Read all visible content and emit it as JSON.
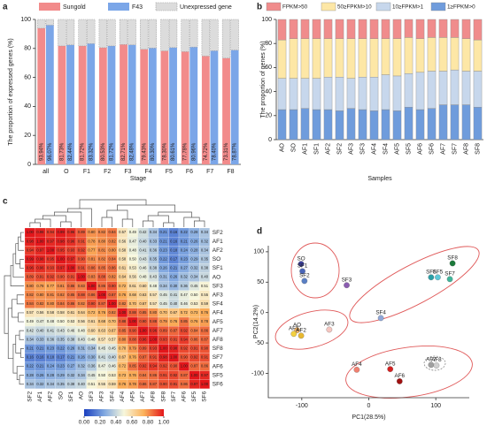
{
  "chart_data": [
    {
      "type": "bar",
      "panel": "a",
      "ylabel": "The proportion of expressed genes (%)",
      "xlabel": "Stage",
      "categories": [
        "all",
        "O",
        "F1",
        "F2",
        "F3",
        "F4",
        "F5",
        "F6",
        "F7",
        "F8"
      ],
      "series": [
        {
          "name": "Sungold",
          "color": "#f28b8b",
          "values": [
            93.94,
            81.73,
            81.72,
            80.53,
            82.71,
            79.43,
            78.3,
            77.78,
            74.72,
            73.31
          ],
          "value_labels": [
            "93.94%",
            "81.73%",
            "81.72%",
            "80.53%",
            "82.71%",
            "79.43%",
            "78.30%",
            "77.78%",
            "74.72%",
            "73.31%"
          ]
        },
        {
          "name": "F43",
          "color": "#7ba6e8",
          "values": [
            96.07,
            82.44,
            83.32,
            81.72,
            82.48,
            80.3,
            80.61,
            80.96,
            78.4,
            78.87
          ],
          "value_labels": [
            "96.07%",
            "82.44%",
            "83.32%",
            "81.72%",
            "82.48%",
            "80.30%",
            "80.61%",
            "80.96%",
            "78.40%",
            "78.87%"
          ]
        }
      ],
      "unexpressed": {
        "name": "Unexpressed gene",
        "color": "#dcdcdc",
        "values": [
          [
            6.06,
            3.93
          ],
          [
            18.27,
            17.56
          ],
          [
            18.28,
            16.68
          ],
          [
            19.47,
            18.28
          ],
          [
            17.29,
            17.52
          ],
          [
            20.57,
            19.7
          ],
          [
            21.7,
            19.39
          ],
          [
            22.22,
            19.04
          ],
          [
            25.28,
            21.6
          ],
          [
            26.69,
            21.13
          ]
        ]
      },
      "ylim": [
        0,
        100
      ],
      "yticks": [
        0,
        20,
        40,
        60,
        80,
        100
      ]
    },
    {
      "type": "stacked_bar",
      "panel": "b",
      "ylabel": "The proportion of genes (%)",
      "xlabel": "Samples",
      "categories": [
        "AO",
        "SO",
        "AF1",
        "SF1",
        "AF2",
        "SF2",
        "AF3",
        "SF3",
        "AF4",
        "SF4",
        "AF5",
        "SF5",
        "AF6",
        "SF6",
        "AF7",
        "SF7",
        "AF8",
        "SF8"
      ],
      "series": [
        {
          "name": "FPKM>50",
          "color": "#f08c8c",
          "values": [
            17,
            16,
            16,
            16,
            16,
            16,
            16,
            16,
            16,
            16,
            16,
            15,
            16,
            15,
            15,
            15,
            16,
            17
          ]
        },
        {
          "name": "50≥FPKM>10",
          "color": "#fde7a6",
          "values": [
            32,
            33,
            33,
            33,
            32,
            32,
            33,
            32,
            32,
            30,
            31,
            30,
            28,
            28,
            28,
            27,
            27,
            26
          ]
        },
        {
          "name": "10≥FPKM>1",
          "color": "#c7d7ec",
          "values": [
            26,
            26,
            25,
            26,
            27,
            28,
            25,
            27,
            28,
            29,
            29,
            28,
            31,
            31,
            28,
            29,
            28,
            30
          ]
        },
        {
          "name": "1≥FPKM>0",
          "color": "#6f9cdc",
          "values": [
            25,
            25,
            26,
            25,
            25,
            24,
            26,
            25,
            24,
            25,
            24,
            27,
            25,
            26,
            29,
            29,
            29,
            27
          ]
        }
      ],
      "ylim": [
        0,
        100
      ],
      "yticks": [
        0,
        20,
        40,
        60,
        80,
        100
      ]
    },
    {
      "type": "heatmap",
      "panel": "c",
      "rows": [
        "SF2",
        "AF1",
        "AF2",
        "SO",
        "SF1",
        "AO",
        "SF3",
        "AF3",
        "SF4",
        "AF4",
        "AF5",
        "AF7",
        "AF8",
        "SF8",
        "SF7",
        "AF6",
        "SF5",
        "SF6"
      ],
      "columns": [
        "SF2",
        "AF1",
        "AF2",
        "SO",
        "SF1",
        "AO",
        "SF3",
        "AF3",
        "SF4",
        "AF4",
        "AF5",
        "AF7",
        "AF8",
        "SF8",
        "SF7",
        "AF6",
        "SF5",
        "SF6"
      ],
      "values": [
        [
          1.0,
          0.98,
          0.94,
          0.99,
          0.96,
          0.89,
          0.8,
          0.82,
          0.84,
          0.57,
          0.49,
          0.42,
          0.34,
          0.21,
          0.16,
          0.22,
          0.28,
          0.34
        ],
        [
          0.98,
          1.0,
          0.97,
          0.98,
          0.96,
          0.91,
          0.78,
          0.8,
          0.82,
          0.56,
          0.47,
          0.4,
          0.33,
          0.21,
          0.16,
          0.21,
          0.26,
          0.32
        ],
        [
          0.94,
          0.97,
          1.0,
          0.95,
          0.93,
          0.92,
          0.77,
          0.81,
          0.8,
          0.58,
          0.48,
          0.41,
          0.36,
          0.23,
          0.18,
          0.24,
          0.28,
          0.34
        ],
        [
          0.99,
          0.98,
          0.95,
          1.0,
          0.97,
          0.9,
          0.81,
          0.82,
          0.84,
          0.58,
          0.5,
          0.43,
          0.35,
          0.22,
          0.17,
          0.23,
          0.29,
          0.35
        ],
        [
          0.96,
          0.96,
          0.93,
          0.97,
          1.0,
          0.91,
          0.86,
          0.85,
          0.86,
          0.61,
          0.53,
          0.46,
          0.38,
          0.26,
          0.21,
          0.27,
          0.32,
          0.38
        ],
        [
          0.89,
          0.91,
          0.92,
          0.9,
          0.91,
          1.0,
          0.83,
          0.88,
          0.82,
          0.64,
          0.56,
          0.48,
          0.43,
          0.31,
          0.26,
          0.32,
          0.34,
          0.4
        ],
        [
          0.8,
          0.78,
          0.77,
          0.81,
          0.86,
          0.83,
          1.0,
          0.86,
          0.9,
          0.72,
          0.61,
          0.6,
          0.48,
          0.34,
          0.3,
          0.36,
          0.45,
          0.51
        ],
        [
          0.82,
          0.8,
          0.81,
          0.82,
          0.85,
          0.88,
          0.86,
          1.0,
          0.87,
          0.76,
          0.68,
          0.63,
          0.57,
          0.45,
          0.41,
          0.47,
          0.5,
          0.55
        ],
        [
          0.84,
          0.82,
          0.8,
          0.84,
          0.86,
          0.82,
          0.9,
          0.87,
          1.0,
          0.82,
          0.7,
          0.67,
          0.57,
          0.45,
          0.4,
          0.46,
          0.53,
          0.59
        ],
        [
          0.57,
          0.56,
          0.58,
          0.58,
          0.61,
          0.64,
          0.72,
          0.76,
          0.82,
          1.0,
          0.88,
          0.85,
          0.8,
          0.7,
          0.67,
          0.72,
          0.73,
          0.76
        ],
        [
          0.49,
          0.47,
          0.48,
          0.5,
          0.53,
          0.56,
          0.61,
          0.68,
          0.7,
          0.88,
          1.0,
          0.9,
          0.88,
          0.79,
          0.76,
          0.85,
          0.76,
          0.78
        ],
        [
          0.42,
          0.4,
          0.41,
          0.43,
          0.46,
          0.48,
          0.6,
          0.63,
          0.67,
          0.85,
          0.9,
          1.0,
          0.96,
          0.89,
          0.87,
          0.92,
          0.84,
          0.86
        ],
        [
          0.34,
          0.33,
          0.36,
          0.35,
          0.38,
          0.43,
          0.48,
          0.57,
          0.57,
          0.8,
          0.88,
          0.96,
          1.0,
          0.93,
          0.91,
          0.94,
          0.86,
          0.87
        ],
        [
          0.21,
          0.21,
          0.23,
          0.22,
          0.26,
          0.31,
          0.34,
          0.45,
          0.45,
          0.7,
          0.79,
          0.89,
          0.93,
          1.0,
          0.98,
          0.92,
          0.91,
          0.9
        ],
        [
          0.16,
          0.16,
          0.18,
          0.17,
          0.21,
          0.26,
          0.3,
          0.41,
          0.4,
          0.67,
          0.76,
          0.87,
          0.91,
          0.98,
          1.0,
          0.9,
          0.92,
          0.91
        ],
        [
          0.22,
          0.21,
          0.24,
          0.23,
          0.27,
          0.32,
          0.36,
          0.47,
          0.46,
          0.72,
          0.85,
          0.92,
          0.94,
          0.92,
          0.9,
          1.0,
          0.87,
          0.86
        ],
        [
          0.28,
          0.26,
          0.28,
          0.29,
          0.32,
          0.34,
          0.45,
          0.5,
          0.53,
          0.73,
          0.76,
          0.84,
          0.86,
          0.91,
          0.92,
          0.87,
          1.0,
          0.97
        ],
        [
          0.34,
          0.32,
          0.34,
          0.35,
          0.38,
          0.4,
          0.51,
          0.55,
          0.59,
          0.76,
          0.78,
          0.86,
          0.87,
          0.9,
          0.91,
          0.86,
          0.97,
          1.0
        ]
      ],
      "value_labels": [
        [
          "1.00",
          "0.98",
          "0.94",
          "0.99",
          "0.96",
          "0.89",
          "0.80",
          "0.82",
          "0.84",
          "0.57",
          "0.49",
          "0.42",
          "0.34",
          "0.21",
          "0.16",
          "0.22",
          "0.28",
          "0.34"
        ],
        [
          "0.98",
          "1.00",
          "0.97",
          "0.98",
          "0.96",
          "0.91",
          "0.78",
          "0.80",
          "0.82",
          "0.56",
          "0.47",
          "0.40",
          "0.33",
          "0.21",
          "0.16",
          "0.21",
          "0.26",
          "0.32"
        ],
        [
          "0.94",
          "0.97",
          "1.00",
          "0.95",
          "0.93",
          "0.92",
          "0.77",
          "0.81",
          "0.80",
          "0.58",
          "0.48",
          "0.41",
          "0.36",
          "0.23",
          "0.18",
          "0.24",
          "0.28",
          "0.34"
        ],
        [
          "0.99",
          "0.98",
          "0.95",
          "1.00",
          "0.97",
          "0.90",
          "0.81",
          "0.82",
          "0.84",
          "0.58",
          "0.50",
          "0.43",
          "0.35",
          "0.22",
          "0.17",
          "0.23",
          "0.29",
          "0.35"
        ],
        [
          "0.96",
          "0.96",
          "0.93",
          "0.97",
          "1.00",
          "0.91",
          "0.86",
          "0.85",
          "0.86",
          "0.61",
          "0.53",
          "0.46",
          "0.38",
          "0.26",
          "0.21",
          "0.27",
          "0.32",
          "0.38"
        ],
        [
          "0.89",
          "0.91",
          "0.92",
          "0.90",
          "0.91",
          "1.00",
          "0.83",
          "0.88",
          "0.82",
          "0.64",
          "0.56",
          "0.48",
          "0.43",
          "0.31",
          "0.26",
          "0.32",
          "0.34",
          "0.40"
        ],
        [
          "0.80",
          "0.78",
          "0.77",
          "0.81",
          "0.86",
          "0.83",
          "1.00",
          "0.86",
          "0.90",
          "0.72",
          "0.61",
          "0.60",
          "0.48",
          "0.34",
          "0.30",
          "0.36",
          "0.45",
          "0.51"
        ],
        [
          "0.82",
          "0.80",
          "0.81",
          "0.82",
          "0.85",
          "0.88",
          "0.86",
          "1.00",
          "0.87",
          "0.76",
          "0.68",
          "0.63",
          "0.57",
          "0.45",
          "0.41",
          "0.47",
          "0.50",
          "0.55"
        ],
        [
          "0.84",
          "0.82",
          "0.80",
          "0.84",
          "0.86",
          "0.82",
          "0.90",
          "0.87",
          "1.00",
          "0.82",
          "0.70",
          "0.67",
          "0.57",
          "0.45",
          "0.40",
          "0.46",
          "0.53",
          "0.59"
        ],
        [
          "0.57",
          "0.56",
          "0.58",
          "0.58",
          "0.61",
          "0.64",
          "0.72",
          "0.76",
          "0.82",
          "1.00",
          "0.88",
          "0.85",
          "0.80",
          "0.70",
          "0.67",
          "0.72",
          "0.73",
          "0.76"
        ],
        [
          "0.49",
          "0.47",
          "0.48",
          "0.50",
          "0.53",
          "0.56",
          "0.61",
          "0.68",
          "0.70",
          "0.88",
          "1.00",
          "0.90",
          "0.88",
          "0.79",
          "0.76",
          "0.85",
          "0.76",
          "0.78"
        ],
        [
          "0.42",
          "0.40",
          "0.41",
          "0.43",
          "0.46",
          "0.48",
          "0.60",
          "0.63",
          "0.67",
          "0.85",
          "0.90",
          "1.00",
          "0.96",
          "0.89",
          "0.87",
          "0.92",
          "0.84",
          "0.86"
        ],
        [
          "0.34",
          "0.33",
          "0.36",
          "0.35",
          "0.38",
          "0.43",
          "0.48",
          "0.57",
          "0.57",
          "0.80",
          "0.88",
          "0.96",
          "1.00",
          "0.93",
          "0.91",
          "0.94",
          "0.86",
          "0.87"
        ],
        [
          "0.21",
          "0.21",
          "0.23",
          "0.22",
          "0.26",
          "0.31",
          "0.34",
          "0.45",
          "0.45",
          "0.70",
          "0.79",
          "0.89",
          "0.93",
          "1.00",
          "0.98",
          "0.92",
          "0.91",
          "0.90"
        ],
        [
          "0.16",
          "0.16",
          "0.18",
          "0.17",
          "0.21",
          "0.26",
          "0.30",
          "0.41",
          "0.40",
          "0.67",
          "0.76",
          "0.87",
          "0.91",
          "0.98",
          "1.00",
          "0.90",
          "0.92",
          "0.91"
        ],
        [
          "0.22",
          "0.21",
          "0.24",
          "0.23",
          "0.27",
          "0.32",
          "0.36",
          "0.47",
          "0.46",
          "0.72",
          "0.85",
          "0.92",
          "0.94",
          "0.92",
          "0.90",
          "1.00",
          "0.87",
          "0.86"
        ],
        [
          "0.28",
          "0.26",
          "0.28",
          "0.29",
          "0.32",
          "0.34",
          "0.45",
          "0.50",
          "0.53",
          "0.73",
          "0.76",
          "0.84",
          "0.86",
          "0.91",
          "0.92",
          "0.87",
          "1.00",
          "0.97"
        ],
        [
          "0.34",
          "0.32",
          "0.34",
          "0.35",
          "0.38",
          "0.40",
          "0.51",
          "0.55",
          "0.59",
          "0.76",
          "0.78",
          "0.86",
          "0.87",
          "0.90",
          "0.91",
          "0.86",
          "0.97",
          "1.00"
        ]
      ],
      "clim": [
        0,
        1
      ],
      "colors": [
        "#1a3fbf",
        "#7ea6e0",
        "#f7f7dc",
        "#fbb15a",
        "#e3161b"
      ],
      "colorbar_ticks": [
        {
          "value": 0,
          "label": "0.00"
        },
        {
          "value": 0.2,
          "label": "0.20"
        },
        {
          "value": 0.4,
          "label": "0.40"
        },
        {
          "value": 0.6,
          "label": "0.60"
        },
        {
          "value": 0.8,
          "label": "0.80"
        },
        {
          "value": 1,
          "label": "1.00"
        }
      ]
    },
    {
      "type": "scatter",
      "panel": "d",
      "xlabel": "PC1(28.5%)",
      "ylabel": "PC2(14.2%)",
      "labels": [
        "SO",
        "SF1",
        "SF2",
        "SF3",
        "SF4",
        "SF6",
        "SF5",
        "SF7",
        "SF8",
        "AO",
        "AF1",
        "AF2",
        "AF3",
        "AF4",
        "AF5",
        "AF6",
        "AF7",
        "AF8"
      ],
      "x": [
        -101,
        -99,
        -96,
        -33,
        18,
        93,
        103,
        121,
        125,
        -107,
        -112,
        -101,
        -59,
        -18,
        32,
        46,
        93,
        101
      ],
      "y": [
        80,
        68,
        52,
        45,
        -9,
        58,
        58,
        55,
        81,
        -29,
        -35,
        -38,
        -28,
        -94,
        -93,
        -113,
        -86,
        -87
      ],
      "colors": [
        "#3b3f9a",
        "#4a66b8",
        "#5a7fc4",
        "#8a5cb0",
        "#8fa7d8",
        "#2a9fa6",
        "#5cc8d8",
        "#3fb59a",
        "#1b7a3a",
        "#f0b060",
        "#f3d040",
        "#e8b830",
        "#f6c6c0",
        "#f08070",
        "#d42020",
        "#a01010",
        "#a0a0a0",
        "#d0d0d0"
      ],
      "xlim": [
        -150,
        150
      ],
      "xticks": [
        -100,
        0,
        100
      ],
      "ylim": [
        -140,
        110
      ],
      "yticks": [
        -100,
        -50,
        0,
        50,
        100
      ]
    }
  ]
}
